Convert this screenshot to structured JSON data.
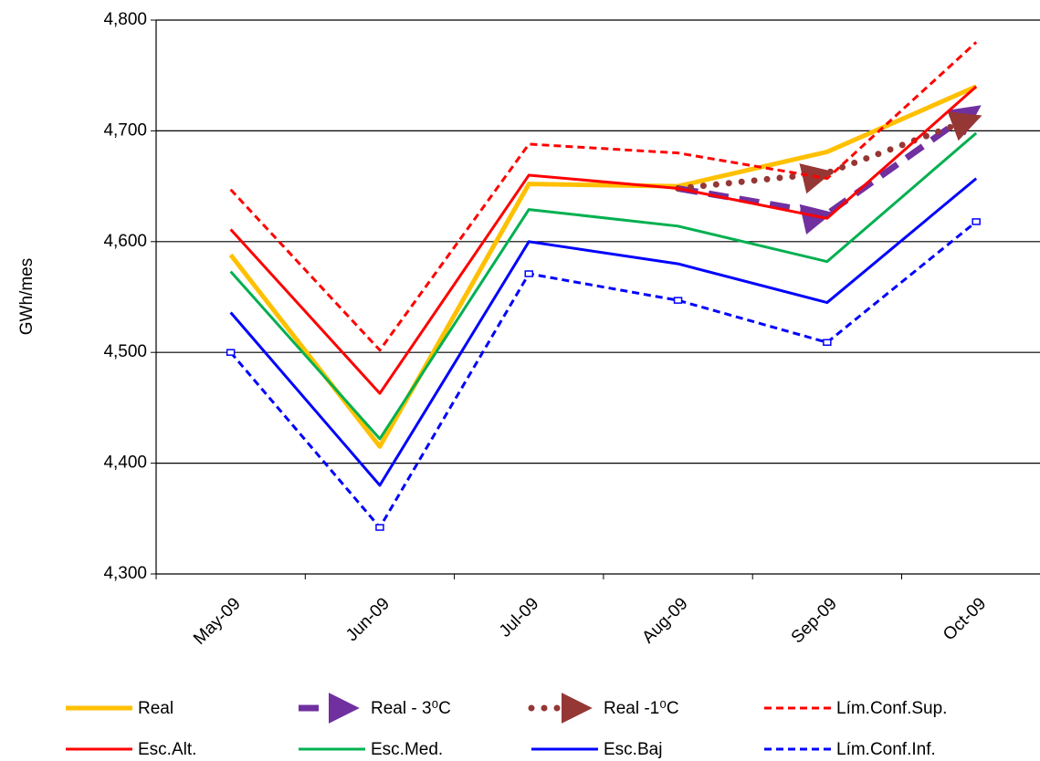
{
  "chart_data": {
    "type": "line",
    "y_label": "GWh/mes",
    "categories": [
      "May-09",
      "Jun-09",
      "Jul-09",
      "Aug-09",
      "Sep-09",
      "Oct-09"
    ],
    "ylim": [
      4300,
      4800
    ],
    "yticks": [
      {
        "value": 4300,
        "label": "4,300"
      },
      {
        "value": 4400,
        "label": "4,400"
      },
      {
        "value": 4500,
        "label": "4,500"
      },
      {
        "value": 4600,
        "label": "4,600"
      },
      {
        "value": 4700,
        "label": "4,700"
      },
      {
        "value": 4800,
        "label": "4,800"
      }
    ],
    "grid": true,
    "legend": "bottom",
    "series": [
      {
        "name": "Real",
        "color": "#ffc000",
        "style": "thick",
        "values": [
          4588,
          4415,
          4652,
          4650,
          4681,
          4740
        ]
      },
      {
        "name": "Real - 3⁰C",
        "color": "#7030a0",
        "style": "thick-dashed",
        "marker": "arrow",
        "values": [
          null,
          null,
          null,
          4648,
          4625,
          4720
        ]
      },
      {
        "name": "Real -1⁰C",
        "color": "#953735",
        "style": "dotted",
        "marker": "arrow",
        "values": [
          null,
          null,
          null,
          4648,
          4662,
          4712
        ]
      },
      {
        "name": "Lím.Conf.Sup.",
        "color": "#ff0000",
        "style": "dashed",
        "values": [
          4647,
          4502,
          4688,
          4680,
          4657,
          4780
        ]
      },
      {
        "name": "Esc.Alt.",
        "color": "#ff0000",
        "style": "solid",
        "values": [
          4611,
          4463,
          4660,
          4648,
          4621,
          4740
        ]
      },
      {
        "name": "Esc.Med.",
        "color": "#00b050",
        "style": "solid",
        "values": [
          4573,
          4422,
          4629,
          4614,
          4582,
          4698
        ]
      },
      {
        "name": "Esc.Baj",
        "color": "#0000ff",
        "style": "solid",
        "values": [
          4536,
          4380,
          4600,
          4580,
          4545,
          4657
        ]
      },
      {
        "name": "Lím.Conf.Inf.",
        "color": "#0000ff",
        "style": "dashed",
        "marker": "square",
        "values": [
          4500,
          4342,
          4571,
          4547,
          4509,
          4618
        ]
      }
    ]
  }
}
